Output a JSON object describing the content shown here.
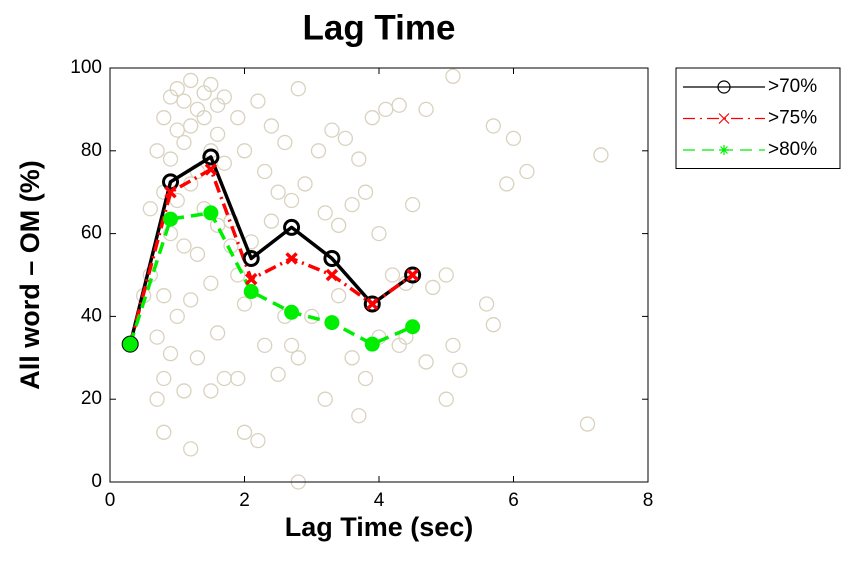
{
  "chart_data": {
    "type": "line",
    "title": "Lag Time",
    "x_label": "Lag Time (sec)",
    "y_label": "All word – OM (%)",
    "xlim": [
      0,
      8
    ],
    "xticks": [
      0,
      2,
      4,
      6,
      8
    ],
    "ylim": [
      0,
      100
    ],
    "yticks": [
      0,
      20,
      40,
      60,
      80,
      100
    ],
    "legend_position": "outside-right",
    "x": [
      0.3,
      0.9,
      1.5,
      2.1,
      2.7,
      3.3,
      3.9,
      4.5
    ],
    "series": [
      {
        "name": ">70%",
        "color": "#000000",
        "marker": "o",
        "linestyle": "-",
        "values": [
          33.3,
          72.5,
          78.5,
          54,
          61.5,
          54,
          43,
          50
        ]
      },
      {
        "name": ">75%",
        "color": "#ff0000",
        "marker": "x",
        "linestyle": "-.",
        "values": [
          33.3,
          70,
          75.5,
          49,
          54,
          50,
          43,
          50
        ]
      },
      {
        "name": ">80%",
        "color": "#00ee00",
        "marker": "*",
        "linestyle": "--",
        "values": [
          33.3,
          63.5,
          65,
          46,
          41,
          38.5,
          33.3,
          37.5
        ]
      }
    ],
    "background_points": {
      "color": "#d9d2bf",
      "x": [
        0.9,
        1.0,
        1.1,
        1.2,
        1.3,
        1.4,
        1.5,
        1.6,
        1.7,
        0.8,
        1.0,
        1.2,
        1.4,
        1.6,
        0.7,
        0.9,
        1.1,
        1.3,
        1.5,
        1.7,
        0.8,
        1.0,
        1.2,
        1.4,
        1.6,
        0.6,
        0.9,
        1.1,
        1.3,
        1.8,
        1.9,
        2.0,
        2.2,
        2.4,
        2.6,
        2.8,
        2.3,
        2.5,
        2.7,
        2.9,
        3.1,
        3.3,
        3.5,
        3.7,
        3.9,
        4.1,
        4.3,
        4.7,
        5.1,
        5.7,
        6.0,
        5.9,
        6.2,
        7.3,
        3.2,
        3.4,
        3.6,
        3.8,
        4.0,
        4.2,
        4.5,
        4.4,
        4.8,
        5.0,
        5.1,
        5.2,
        5.0,
        5.6,
        5.7,
        7.1,
        0.6,
        0.8,
        1.0,
        1.2,
        0.7,
        0.9,
        1.1,
        0.8,
        0.7,
        0.8,
        1.2,
        1.3,
        1.6,
        1.7,
        1.9,
        2.0,
        2.2,
        2.3,
        2.5,
        2.6,
        2.7,
        2.8,
        2.8,
        3.0,
        3.2,
        3.4,
        3.6,
        3.7,
        3.8,
        4.0,
        4.3,
        4.4,
        4.7,
        1.5,
        1.8,
        2.1,
        2.4,
        2.0,
        1.9,
        1.5,
        0.5
      ],
      "y": [
        93,
        95,
        92,
        97,
        90,
        94,
        96,
        91,
        93,
        88,
        85,
        86,
        88,
        84,
        80,
        78,
        82,
        75,
        80,
        77,
        70,
        68,
        72,
        66,
        62,
        66,
        60,
        57,
        55,
        63,
        88,
        80,
        92,
        86,
        82,
        95,
        75,
        70,
        68,
        72,
        80,
        85,
        83,
        78,
        88,
        90,
        91,
        90,
        98,
        86,
        83,
        72,
        75,
        79,
        65,
        62,
        67,
        70,
        60,
        50,
        67,
        48,
        47,
        50,
        33,
        27,
        20,
        43,
        38,
        14,
        50,
        45,
        40,
        44,
        35,
        31,
        22,
        25,
        20,
        12,
        8,
        30,
        36,
        25,
        25,
        12,
        10,
        33,
        26,
        40,
        33,
        0,
        30,
        40,
        20,
        45,
        30,
        16,
        25,
        35,
        33,
        35,
        29,
        22,
        57,
        58,
        63,
        43,
        50,
        48,
        45
      ]
    }
  }
}
